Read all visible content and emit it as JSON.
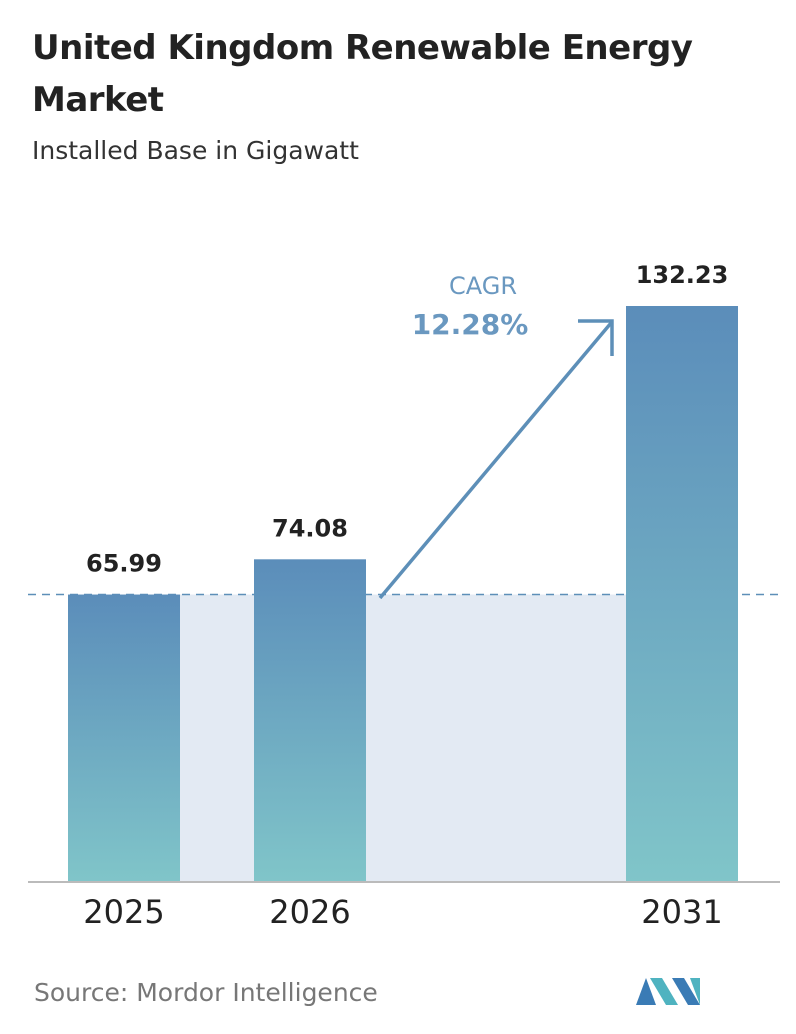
{
  "chart_data": {
    "type": "bar",
    "title": "United Kingdom Renewable Energy Market",
    "subtitle": "Installed Base in Gigawatt",
    "categories": [
      "2025",
      "2026",
      "2031"
    ],
    "values": [
      65.99,
      74.08,
      132.23
    ],
    "gradient": [
      "#5b8dba",
      "#80c5c9"
    ],
    "reference_line": true,
    "annotation": {
      "label": "CAGR",
      "value": "12.28%"
    },
    "source": "Source: Mordor Intelligence"
  }
}
